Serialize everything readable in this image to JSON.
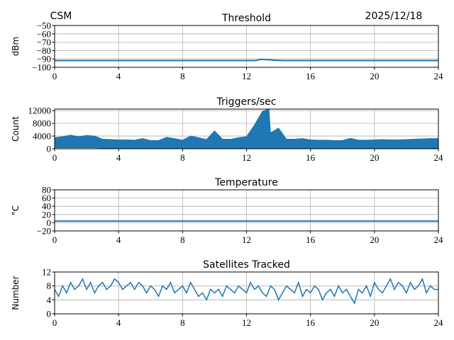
{
  "header": {
    "left": "CSM",
    "right": "2025/12/18"
  },
  "chart_data": [
    {
      "type": "line",
      "title": "Threshold",
      "ylabel": "dBm",
      "xlim": [
        0,
        24
      ],
      "ylim": [
        -100,
        -50
      ],
      "xticks": [
        0,
        4,
        8,
        12,
        16,
        20,
        24
      ],
      "yticks": [
        -50,
        -60,
        -70,
        -80,
        -90,
        -100
      ],
      "ytick_labels": [
        "−50",
        "−60",
        "−70",
        "−80",
        "−90",
        "−100"
      ],
      "grid": true,
      "color": "#1f77b4",
      "x": [
        0,
        4,
        8,
        12,
        12.6,
        12.9,
        13.1,
        13.4,
        13.7,
        14.0,
        14.4,
        16,
        20,
        24
      ],
      "y": [
        -92,
        -92,
        -92,
        -92,
        -91.8,
        -90.5,
        -90.8,
        -91,
        -91.5,
        -91.7,
        -92,
        -92,
        -92,
        -92
      ]
    },
    {
      "type": "area",
      "title": "Triggers/sec",
      "ylabel": "Count",
      "xlim": [
        0,
        24
      ],
      "ylim": [
        0,
        12500
      ],
      "xticks": [
        0,
        4,
        8,
        12,
        16,
        20,
        24
      ],
      "yticks": [
        0,
        4000,
        8000,
        12000
      ],
      "ytick_labels": [
        "0",
        "4000",
        "8000",
        "12000"
      ],
      "grid": true,
      "color": "#1f77b4",
      "x": [
        0,
        0.5,
        1,
        1.5,
        2,
        2.5,
        3,
        3.5,
        4,
        4.5,
        5,
        5.5,
        6,
        6.5,
        7,
        7.5,
        8,
        8.5,
        9,
        9.5,
        10,
        10.5,
        11,
        11.5,
        12,
        12.5,
        13,
        13.4,
        13.5,
        14,
        14.5,
        15,
        15.5,
        16,
        16.5,
        17,
        17.5,
        18,
        18.5,
        19,
        19.5,
        20,
        20.5,
        21,
        21.5,
        22,
        22.5,
        23,
        23.5,
        24
      ],
      "upper": [
        3500,
        3800,
        4300,
        3800,
        4200,
        4000,
        3000,
        2900,
        2800,
        2800,
        2700,
        3200,
        2600,
        2600,
        3600,
        3200,
        2700,
        4000,
        3500,
        2900,
        5600,
        3000,
        3000,
        3500,
        3800,
        7500,
        11800,
        12500,
        5000,
        6500,
        3000,
        3000,
        3200,
        2800,
        2700,
        2700,
        2600,
        2600,
        3300,
        2700,
        2700,
        2800,
        2900,
        2800,
        2800,
        2900,
        3000,
        3100,
        3200,
        3200
      ],
      "lower": [
        300,
        300,
        300,
        300,
        300,
        300,
        200,
        200,
        200,
        200,
        200,
        200,
        200,
        200,
        200,
        200,
        200,
        200,
        200,
        200,
        200,
        200,
        200,
        200,
        200,
        200,
        200,
        200,
        200,
        200,
        200,
        200,
        200,
        200,
        200,
        200,
        200,
        200,
        200,
        200,
        200,
        200,
        200,
        200,
        200,
        200,
        200,
        200,
        200,
        200
      ]
    },
    {
      "type": "line",
      "title": "Temperature",
      "ylabel": "°C",
      "xlim": [
        0,
        24
      ],
      "ylim": [
        -20,
        80
      ],
      "xticks": [
        0,
        4,
        8,
        12,
        16,
        20,
        24
      ],
      "yticks": [
        -20,
        0,
        20,
        40,
        60,
        80
      ],
      "ytick_labels": [
        "−20",
        "0",
        "20",
        "40",
        "60",
        "80"
      ],
      "grid": true,
      "color": "#1f77b4",
      "x": [
        0,
        24
      ],
      "y": [
        4,
        4
      ]
    },
    {
      "type": "line",
      "title": "Satellites Tracked",
      "ylabel": "Number",
      "xlim": [
        0,
        24
      ],
      "ylim": [
        0,
        12
      ],
      "xticks": [
        0,
        4,
        8,
        12,
        16,
        20,
        24
      ],
      "yticks": [
        0,
        4,
        8,
        12
      ],
      "ytick_labels": [
        "0",
        "4",
        "8",
        "12"
      ],
      "grid": true,
      "color": "#1f77b4",
      "x_step": 0.25,
      "y": [
        7,
        5,
        8,
        6,
        9,
        7,
        8,
        10,
        7,
        9,
        6,
        8,
        9,
        7,
        8,
        10,
        9,
        7,
        8,
        9,
        7,
        9,
        8,
        6,
        8,
        7,
        5,
        8,
        7,
        9,
        6,
        7,
        8,
        6,
        9,
        7,
        5,
        6,
        4,
        7,
        6,
        7,
        5,
        8,
        7,
        6,
        8,
        7,
        6,
        9,
        7,
        8,
        6,
        5,
        8,
        7,
        4,
        6,
        8,
        7,
        6,
        9,
        5,
        7,
        6,
        8,
        7,
        4,
        6,
        7,
        5,
        8,
        6,
        7,
        5,
        3,
        7,
        6,
        8,
        5,
        9,
        7,
        6,
        8,
        10,
        7,
        9,
        8,
        6,
        9,
        7,
        8,
        10,
        6,
        8,
        7,
        7
      ]
    }
  ]
}
